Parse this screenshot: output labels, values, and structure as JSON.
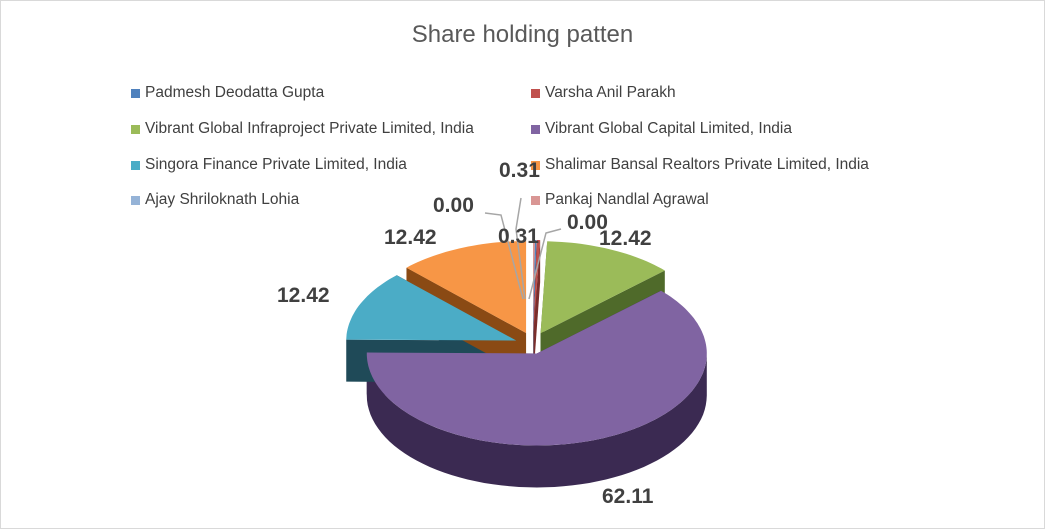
{
  "chart_data": {
    "type": "pie",
    "style": "3d-exploded",
    "title": "Share holding patten",
    "categories": [
      "Padmesh Deodatta Gupta",
      "Varsha Anil Parakh",
      "Vibrant Global Infraproject Private Limited, India",
      "Vibrant Global Capital Limited, India",
      "Singora Finance Private Limited, India",
      "Shalimar Bansal Realtors Private Limited, India",
      "Ajay Shriloknath Lohia",
      "Pankaj Nandlal Agrawal"
    ],
    "values": [
      0.31,
      0.31,
      12.42,
      62.11,
      12.42,
      12.42,
      0.0,
      0.0
    ],
    "labels": [
      "0.31",
      "0.31",
      "12.42",
      "62.11",
      "12.42",
      "12.42",
      "0.00",
      "0.00"
    ],
    "colors": [
      "#4F81BD",
      "#C0504D",
      "#9BBB59",
      "#8064A2",
      "#4BACC6",
      "#F79646",
      "#95B3D7",
      "#D99694"
    ],
    "side_colors": [
      "#2c4d74",
      "#7a2e2c",
      "#4f6a2a",
      "#3b2a52",
      "#1f4a58",
      "#8a4a14",
      "#5a7399",
      "#9a5a58"
    ],
    "legend_position": "top"
  }
}
